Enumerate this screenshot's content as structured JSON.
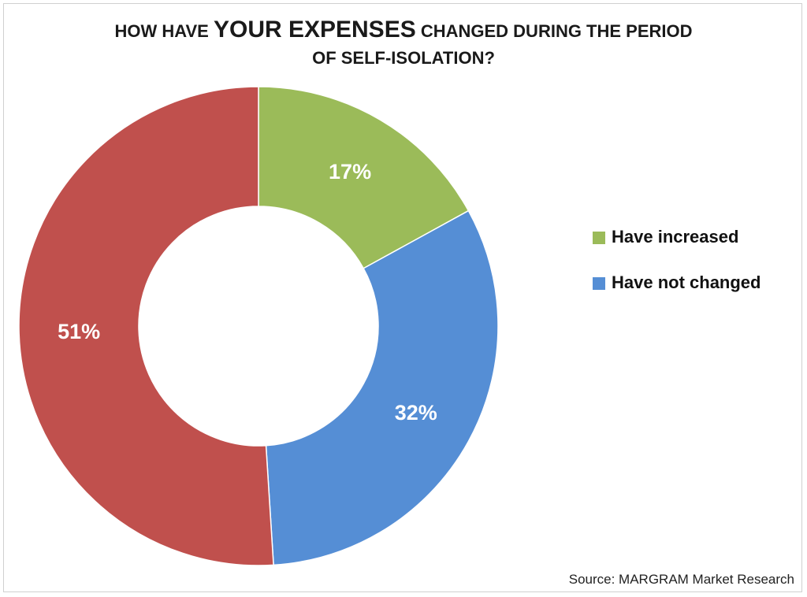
{
  "title": {
    "part1": "HOW HAVE ",
    "emphasis": "YOUR EXPENSES",
    "part2": " CHANGED DURING THE PERIOD",
    "line2": "OF SELF-ISOLATION?"
  },
  "source": "Source: MARGRAM Market Research",
  "chart_data": {
    "type": "pie",
    "variant": "donut",
    "title": "HOW HAVE YOUR EXPENSES CHANGED DURING THE PERIOD OF SELF-ISOLATION?",
    "series": [
      {
        "name": "Have increased",
        "value": 17,
        "label": "17%",
        "color": "#9BBB59"
      },
      {
        "name": "Have not changed",
        "value": 32,
        "label": "32%",
        "color": "#558ED5"
      },
      {
        "name": "",
        "value": 51,
        "label": "51%",
        "color": "#C0504D"
      }
    ],
    "legend_position": "right",
    "legend_entries": [
      {
        "label": "Have increased",
        "color": "#9BBB59"
      },
      {
        "label": "Have not changed",
        "color": "#558ED5"
      }
    ]
  }
}
